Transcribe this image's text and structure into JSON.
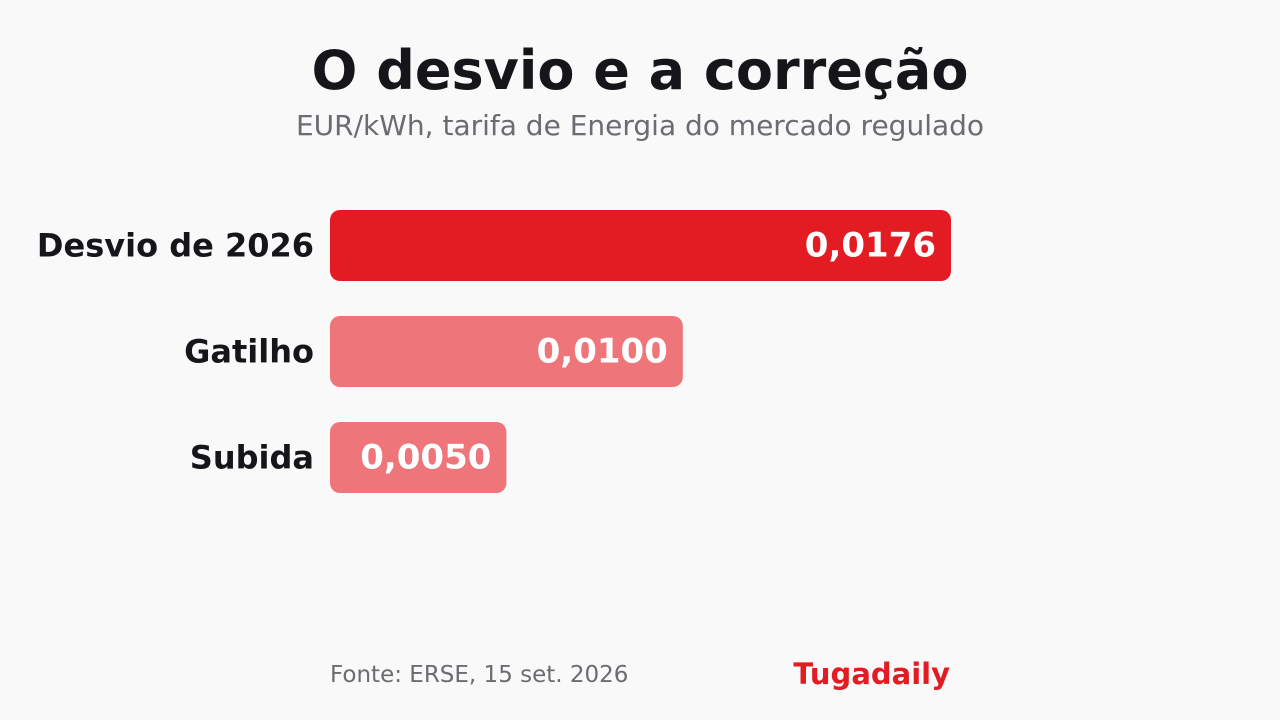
{
  "title": "O desvio e a correção",
  "subtitle": "EUR/kWh, tarifa de Energia do mercado regulado",
  "source": "Fonte: ERSE, 15 set. 2026",
  "brand": "Tugadaily",
  "colors": {
    "highlight": "#e31c24",
    "muted": "#ee767b",
    "brand": "#e31c24"
  },
  "chart_data": {
    "type": "bar",
    "orientation": "horizontal",
    "categories": [
      "Desvio de 2026",
      "Gatilho",
      "Subida"
    ],
    "values": [
      0.0176,
      0.01,
      0.005
    ],
    "value_labels": [
      "0,0176",
      "0,0100",
      "0,0050"
    ],
    "highlight": [
      true,
      false,
      false
    ],
    "xlim": [
      0,
      0.0176
    ],
    "grid": false,
    "legend": "none"
  }
}
